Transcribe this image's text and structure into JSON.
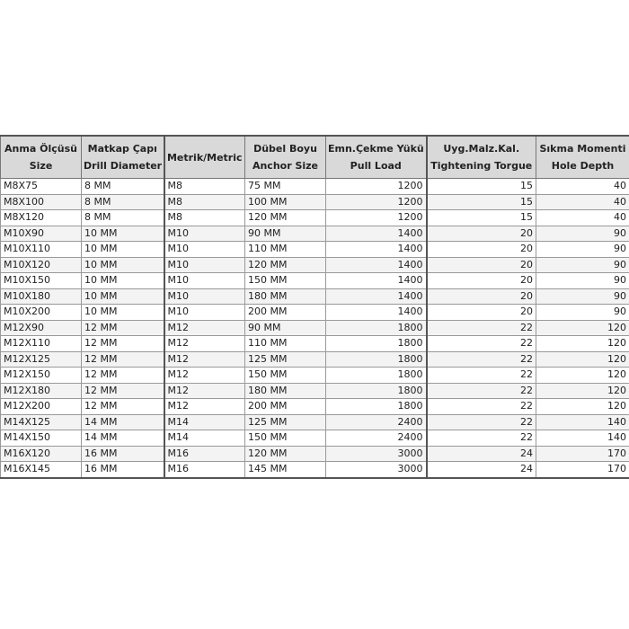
{
  "table": {
    "headers": [
      [
        "Anma Ölçüsü",
        "Size"
      ],
      [
        "Matkap Çapı",
        "Drill Diameter"
      ],
      [
        "Metrik/Metric",
        ""
      ],
      [
        "Dübel Boyu",
        "Anchor Size"
      ],
      [
        "Emn.Çekme Yükü",
        "Pull Load"
      ],
      [
        "Uyg.Malz.Kal.",
        "Tightening Torgue"
      ],
      [
        "Sıkma Momenti",
        "Hole Depth"
      ]
    ],
    "rows": [
      [
        "M8X75",
        "8 MM",
        "M8",
        "75 MM",
        "1200",
        "15",
        "40"
      ],
      [
        "M8X100",
        "8 MM",
        "M8",
        "100 MM",
        "1200",
        "15",
        "40"
      ],
      [
        "M8X120",
        "8 MM",
        "M8",
        "120 MM",
        "1200",
        "15",
        "40"
      ],
      [
        "M10X90",
        "10 MM",
        "M10",
        "90 MM",
        "1400",
        "20",
        "90"
      ],
      [
        "M10X110",
        "10 MM",
        "M10",
        "110 MM",
        "1400",
        "20",
        "90"
      ],
      [
        "M10X120",
        "10 MM",
        "M10",
        "120 MM",
        "1400",
        "20",
        "90"
      ],
      [
        "M10X150",
        "10 MM",
        "M10",
        "150 MM",
        "1400",
        "20",
        "90"
      ],
      [
        "M10X180",
        "10 MM",
        "M10",
        "180 MM",
        "1400",
        "20",
        "90"
      ],
      [
        "M10X200",
        "10 MM",
        "M10",
        "200 MM",
        "1400",
        "20",
        "90"
      ],
      [
        "M12X90",
        "12 MM",
        "M12",
        "90 MM",
        "1800",
        "22",
        "120"
      ],
      [
        "M12X110",
        "12 MM",
        "M12",
        "110 MM",
        "1800",
        "22",
        "120"
      ],
      [
        "M12X125",
        "12 MM",
        "M12",
        "125 MM",
        "1800",
        "22",
        "120"
      ],
      [
        "M12X150",
        "12 MM",
        "M12",
        "150 MM",
        "1800",
        "22",
        "120"
      ],
      [
        "M12X180",
        "12 MM",
        "M12",
        "180 MM",
        "1800",
        "22",
        "120"
      ],
      [
        "M12X200",
        "12 MM",
        "M12",
        "200 MM",
        "1800",
        "22",
        "120"
      ],
      [
        "M14X125",
        "14 MM",
        "M14",
        "125 MM",
        "2400",
        "22",
        "140"
      ],
      [
        "M14X150",
        "14 MM",
        "M14",
        "150 MM",
        "2400",
        "22",
        "140"
      ],
      [
        "M16X120",
        "16 MM",
        "M16",
        "120 MM",
        "3000",
        "24",
        "170"
      ],
      [
        "M16X145",
        "16 MM",
        "M16",
        "145 MM",
        "3000",
        "24",
        "170"
      ]
    ]
  }
}
